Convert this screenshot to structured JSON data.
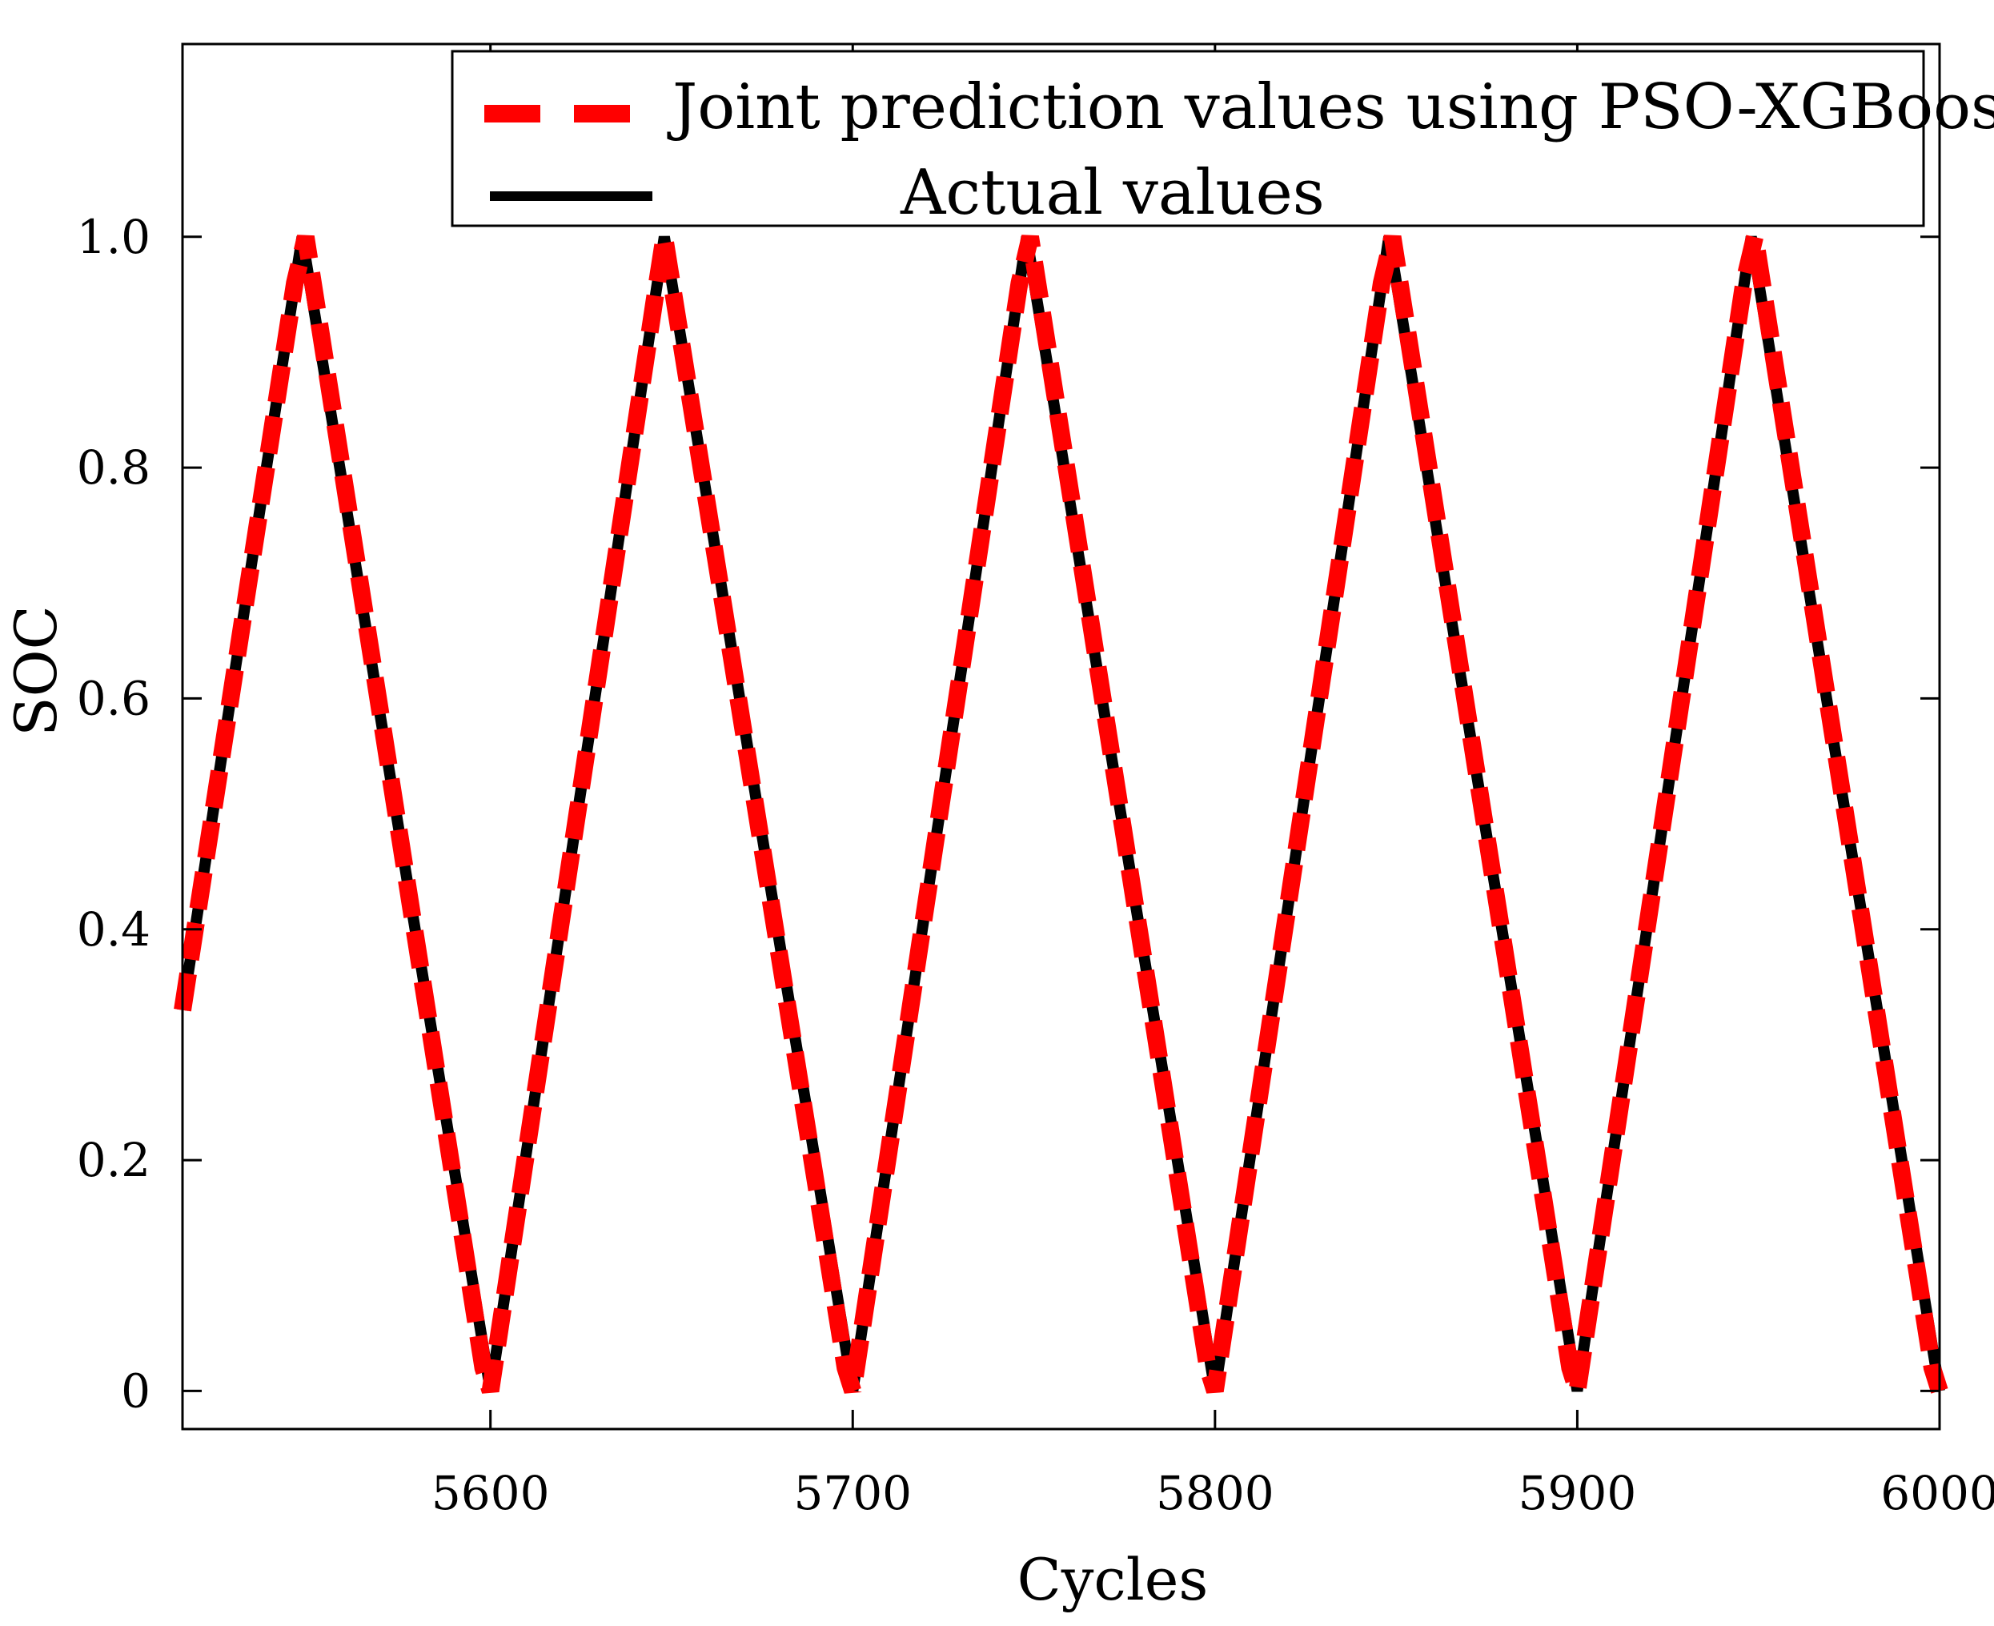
{
  "chart_data": {
    "type": "line",
    "title": "",
    "xlabel": "Cycles",
    "ylabel": "SOC",
    "xlim": [
      5515,
      6000
    ],
    "ylim": [
      -0.033,
      1.167
    ],
    "x_ticks": [
      5600,
      5700,
      5800,
      5900,
      6000
    ],
    "y_ticks": [
      0,
      0.2,
      0.4,
      0.6,
      0.8,
      1.0
    ],
    "x_tick_labels": [
      "5600",
      "5700",
      "5800",
      "5900",
      "6000"
    ],
    "y_tick_labels": [
      "0",
      "0.2",
      "0.4",
      "0.6",
      "0.8",
      "1.0"
    ],
    "grid": false,
    "legend_position": "top-right",
    "series": [
      {
        "name": "Joint prediction values using PSO-XGBoost",
        "color": "#ff0000",
        "style": "dashed",
        "x": [
          5515,
          5546,
          5549,
          5598,
          5600,
          5646,
          5648,
          5698,
          5700,
          5746,
          5749,
          5798,
          5800,
          5846,
          5849,
          5898,
          5900,
          5946,
          5949,
          5998,
          6000
        ],
        "y": [
          0.33,
          0.96,
          1.0,
          0.02,
          0.0,
          0.96,
          1.0,
          0.02,
          0.0,
          0.96,
          1.0,
          0.02,
          0.0,
          0.96,
          1.0,
          0.02,
          0.0,
          0.96,
          1.0,
          0.02,
          0.0
        ]
      },
      {
        "name": "Actual values",
        "color": "#000000",
        "style": "solid",
        "x": [
          5515,
          5548,
          5600,
          5648,
          5700,
          5748,
          5800,
          5848,
          5900,
          5948,
          6000
        ],
        "y": [
          0.33,
          1.0,
          0.0,
          1.0,
          0.0,
          1.0,
          0.0,
          1.0,
          0.0,
          1.0,
          0.0
        ]
      }
    ]
  }
}
